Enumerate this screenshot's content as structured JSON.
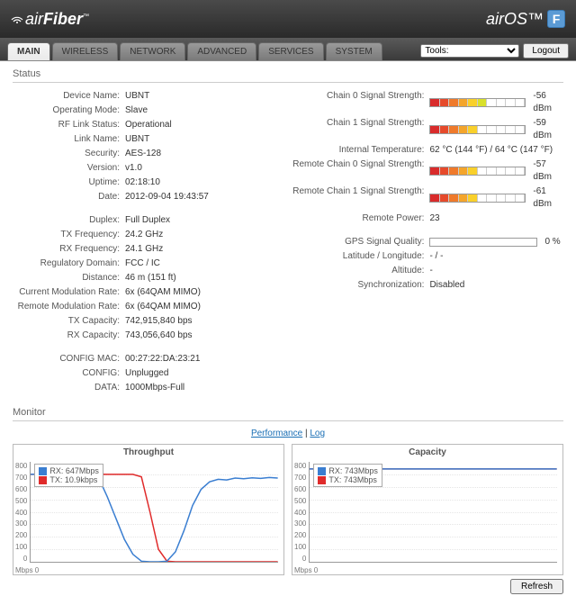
{
  "brand": {
    "left_a": "air",
    "left_b": "Fiber",
    "right_a": "air",
    "right_b": "OS",
    "badge": "F",
    "tm": "™"
  },
  "tabs": [
    "MAIN",
    "WIRELESS",
    "NETWORK",
    "ADVANCED",
    "SERVICES",
    "SYSTEM"
  ],
  "active_tab": 0,
  "toolbar": {
    "tools_label": "Tools:",
    "logout": "Logout"
  },
  "sections": {
    "status": "Status",
    "monitor": "Monitor"
  },
  "status_left": [
    {
      "lbl": "Device Name:",
      "val": "UBNT"
    },
    {
      "lbl": "Operating Mode:",
      "val": "Slave"
    },
    {
      "lbl": "RF Link Status:",
      "val": "Operational"
    },
    {
      "lbl": "Link Name:",
      "val": "UBNT"
    },
    {
      "lbl": "Security:",
      "val": "AES-128"
    },
    {
      "lbl": "Version:",
      "val": "v1.0"
    },
    {
      "lbl": "Uptime:",
      "val": "02:18:10"
    },
    {
      "lbl": "Date:",
      "val": "2012-09-04 19:43:57"
    },
    {
      "gap": true
    },
    {
      "lbl": "Duplex:",
      "val": "Full Duplex"
    },
    {
      "lbl": "TX Frequency:",
      "val": "24.2 GHz"
    },
    {
      "lbl": "RX Frequency:",
      "val": "24.1 GHz"
    },
    {
      "lbl": "Regulatory Domain:",
      "val": "FCC / IC"
    },
    {
      "lbl": "Distance:",
      "val": "46 m (151 ft)"
    },
    {
      "lbl": "Current Modulation Rate:",
      "val": "6x (64QAM MIMO)"
    },
    {
      "lbl": "Remote Modulation Rate:",
      "val": "6x (64QAM MIMO)"
    },
    {
      "lbl": "TX Capacity:",
      "val": "742,915,840 bps"
    },
    {
      "lbl": "RX Capacity:",
      "val": "743,056,640 bps"
    },
    {
      "gap": true
    },
    {
      "lbl": "CONFIG MAC:",
      "val": "00:27:22:DA:23:21"
    },
    {
      "lbl": "CONFIG:",
      "val": "Unplugged"
    },
    {
      "lbl": "DATA:",
      "val": "1000Mbps-Full"
    }
  ],
  "status_right": [
    {
      "lbl": "Chain 0 Signal Strength:",
      "sig": 0.55,
      "val": "-56 dBm"
    },
    {
      "lbl": "Chain 1 Signal Strength:",
      "sig": 0.5,
      "val": "-59 dBm"
    },
    {
      "lbl": "Internal Temperature:",
      "val": "62 °C (144 °F) / 64 °C (147 °F)"
    },
    {
      "lbl": "Remote Chain 0 Signal Strength:",
      "sig": 0.53,
      "val": "-57 dBm"
    },
    {
      "lbl": "Remote Chain 1 Signal Strength:",
      "sig": 0.47,
      "val": "-61 dBm"
    },
    {
      "lbl": "Remote Power:",
      "val": "23"
    },
    {
      "gap": true
    },
    {
      "lbl": "GPS Signal Quality:",
      "gps": 0,
      "val": "0 %"
    },
    {
      "lbl": "Latitude / Longitude:",
      "val": "- / -"
    },
    {
      "lbl": "Altitude:",
      "val": "-"
    },
    {
      "lbl": "Synchronization:",
      "val": "Disabled"
    }
  ],
  "signal_colors": [
    "#d92b2b",
    "#e64a2b",
    "#ef7a2b",
    "#f4a52b",
    "#f9d02b",
    "#d9e02b",
    "#a6d92b",
    "#6fcf2b",
    "#3fbf2b",
    "#2bb52b"
  ],
  "monitor_links": {
    "performance": "Performance",
    "log": "Log"
  },
  "charts": {
    "ylim": [
      0,
      800
    ],
    "ytick_step": 100,
    "x_unit": "Mbps",
    "colors": {
      "rx": "#3a7ed1",
      "tx": "#e02b2b",
      "grid": "#e5e5e5",
      "axis": "#999"
    },
    "throughput": {
      "title": "Throughput",
      "legend": [
        {
          "label": "RX: 647Mbps",
          "color": "#3a7ed1"
        },
        {
          "label": "TX: 10.9kbps",
          "color": "#e02b2b"
        }
      ],
      "rx": [
        700,
        702,
        701,
        700,
        698,
        700,
        701,
        700,
        670,
        520,
        350,
        180,
        60,
        5,
        0,
        0,
        5,
        80,
        250,
        450,
        580,
        640,
        660,
        655,
        670,
        665,
        672,
        668,
        675,
        670
      ],
      "tx": [
        700,
        701,
        699,
        700,
        702,
        700,
        700,
        699,
        701,
        700,
        700,
        700,
        700,
        680,
        400,
        100,
        5,
        0,
        0,
        0,
        0,
        0,
        0,
        0,
        0,
        0,
        0,
        0,
        0,
        0
      ]
    },
    "capacity": {
      "title": "Capacity",
      "legend": [
        {
          "label": "RX: 743Mbps",
          "color": "#3a7ed1"
        },
        {
          "label": "TX: 743Mbps",
          "color": "#e02b2b"
        }
      ],
      "rx": [
        743,
        743,
        743,
        743,
        743,
        743,
        743,
        743,
        743,
        743,
        743,
        743,
        743,
        743,
        743,
        743,
        743,
        743,
        743,
        743,
        743,
        743,
        743,
        743,
        743,
        743,
        743,
        743,
        743,
        743
      ],
      "tx": [
        743,
        743,
        743,
        743,
        743,
        743,
        743,
        743,
        743,
        743,
        743,
        743,
        743,
        743,
        743,
        743,
        743,
        743,
        743,
        743,
        743,
        743,
        743,
        743,
        743,
        743,
        743,
        743,
        743,
        743
      ]
    }
  },
  "refresh": "Refresh"
}
